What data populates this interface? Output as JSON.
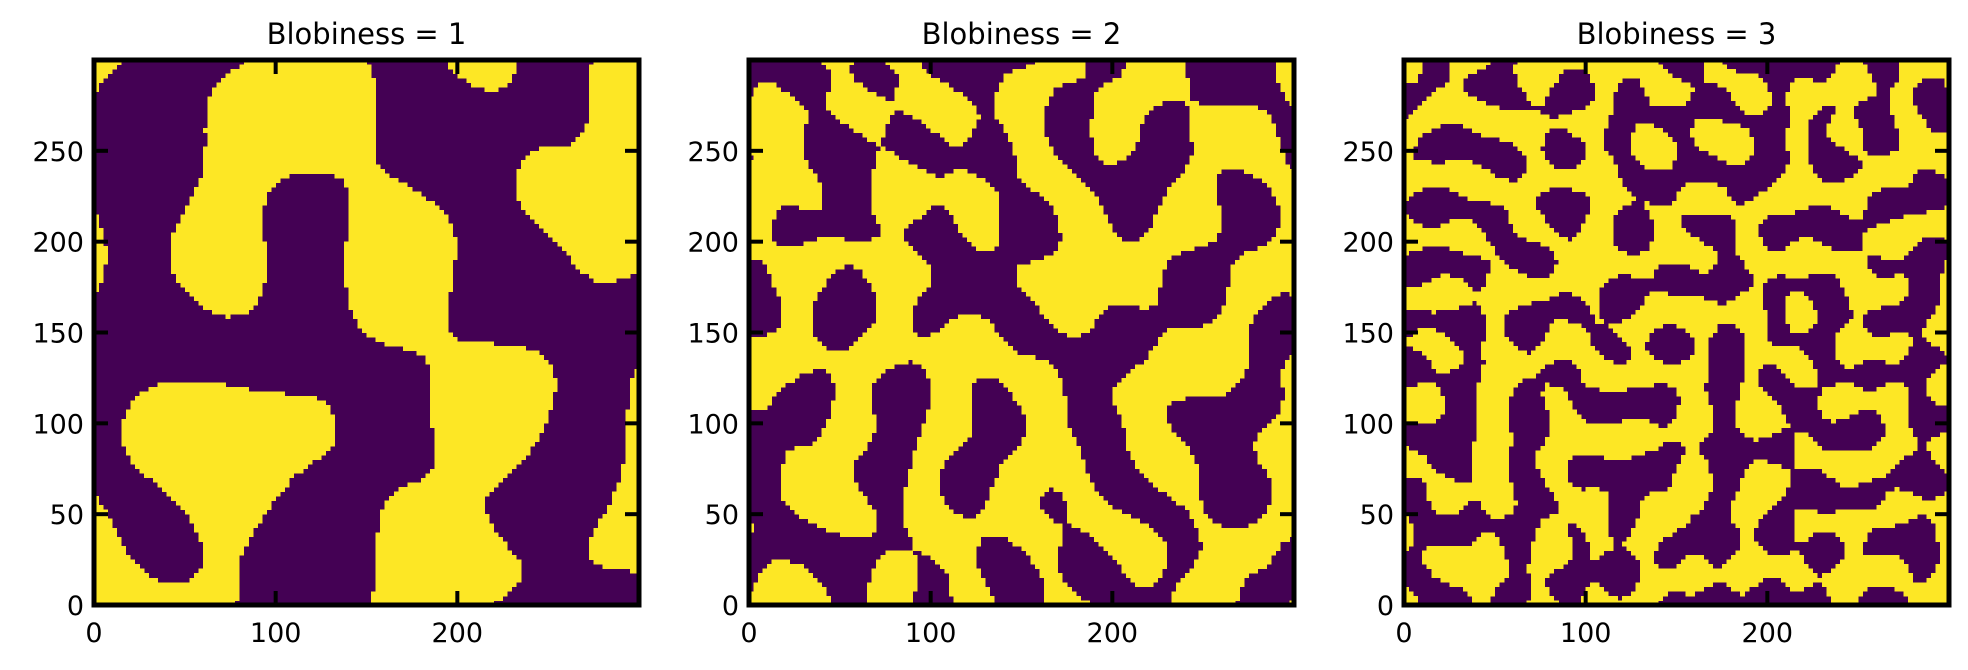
{
  "chart_data": [
    {
      "type": "heatmap",
      "title": "Blobiness = 1",
      "blobiness": 1,
      "xlim": [
        0,
        300
      ],
      "ylim": [
        0,
        300
      ],
      "xticks": [
        0,
        100,
        200
      ],
      "yticks": [
        0,
        50,
        100,
        150,
        200,
        250
      ],
      "grid": false,
      "values": "binary field (0/1), 300 x 300 pixels",
      "colors": {
        "low": "#440154",
        "high": "#fde725"
      }
    },
    {
      "type": "heatmap",
      "title": "Blobiness = 2",
      "blobiness": 2,
      "xlim": [
        0,
        300
      ],
      "ylim": [
        0,
        300
      ],
      "xticks": [
        0,
        100,
        200
      ],
      "yticks": [
        0,
        50,
        100,
        150,
        200,
        250
      ],
      "grid": false,
      "values": "binary field (0/1), 300 x 300 pixels",
      "colors": {
        "low": "#440154",
        "high": "#fde725"
      }
    },
    {
      "type": "heatmap",
      "title": "Blobiness = 3",
      "blobiness": 3,
      "xlim": [
        0,
        300
      ],
      "ylim": [
        0,
        300
      ],
      "xticks": [
        0,
        100,
        200
      ],
      "yticks": [
        0,
        50,
        100,
        150,
        200,
        250
      ],
      "grid": false,
      "values": "binary field (0/1), 300 x 300 pixels",
      "colors": {
        "low": "#440154",
        "high": "#fde725"
      }
    }
  ]
}
